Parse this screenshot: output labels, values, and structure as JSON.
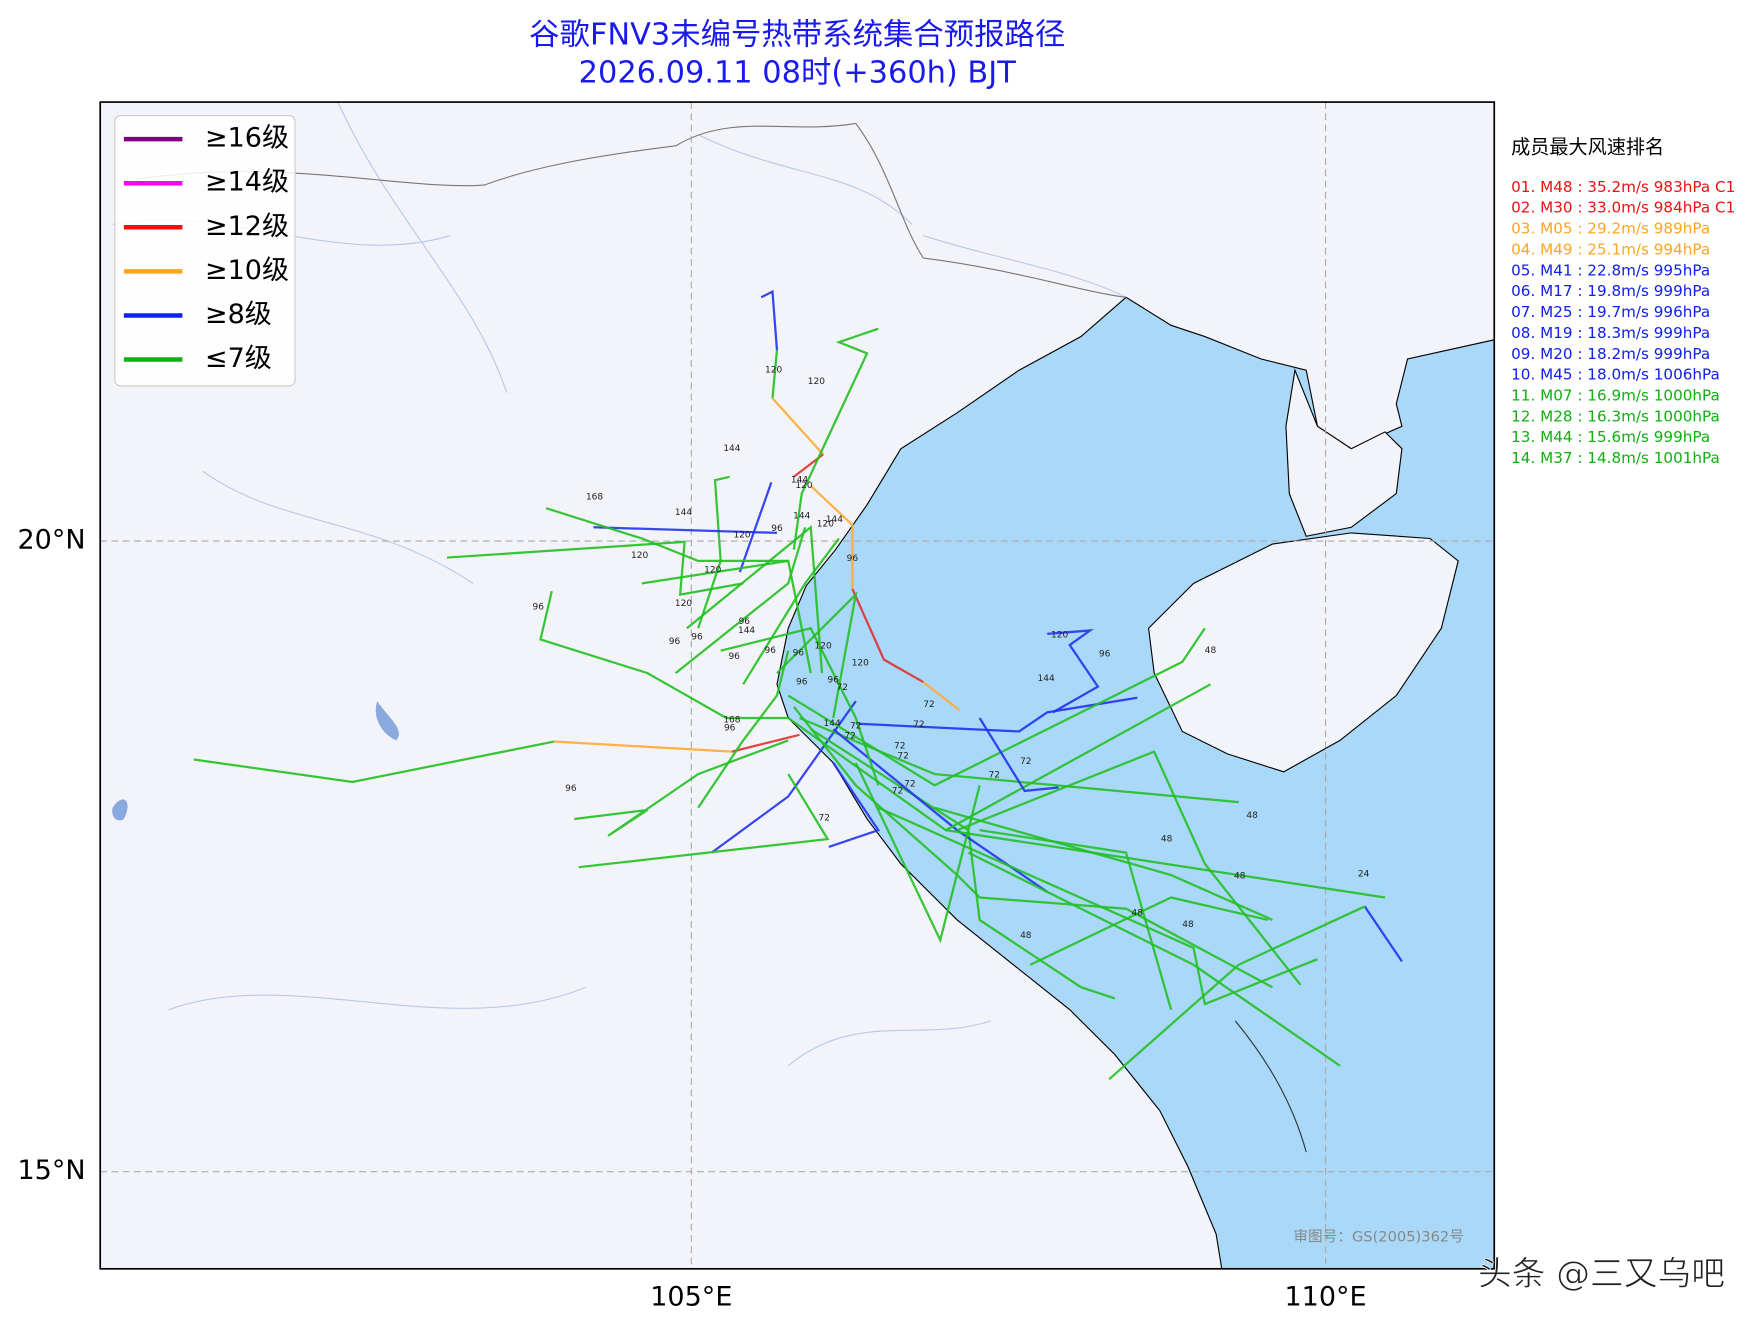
{
  "map": {
    "title": "谷歌FNV3未编号热带系统集合预报路径",
    "subtitle": "2026.09.11 08时(+360h) BJT",
    "xlim": [
      100.34,
      111.33
    ],
    "ylim": [
      14.23,
      23.48
    ],
    "xticks": [
      {
        "value": 105,
        "label": "105°E"
      },
      {
        "value": 110,
        "label": "110°E"
      }
    ],
    "yticks": [
      {
        "value": 20,
        "label": "20°N"
      },
      {
        "value": 15,
        "label": "15°N"
      }
    ],
    "grid": true,
    "legend": [
      {
        "label": "≥16级",
        "color": "#800080"
      },
      {
        "label": "≥14级",
        "color": "#ff00ff"
      },
      {
        "label": "≥12级",
        "color": "#ee1111"
      },
      {
        "label": "≥10级",
        "color": "#ffa520"
      },
      {
        "label": "≥8级",
        "color": "#1020ee"
      },
      {
        "label": "≤7级",
        "color": "#10b010"
      }
    ],
    "ranking": {
      "title": "成员最大风速排名",
      "items": [
        {
          "text": "01. M48 : 35.2m/s 983hPa C1",
          "color": "#ee1111"
        },
        {
          "text": "02. M30 : 33.0m/s 984hPa C1",
          "color": "#ee1111"
        },
        {
          "text": "03. M05 : 29.2m/s 989hPa",
          "color": "#ffa520"
        },
        {
          "text": "04. M49 : 25.1m/s 994hPa",
          "color": "#ffa520"
        },
        {
          "text": "05. M41 : 22.8m/s 995hPa",
          "color": "#1020ee"
        },
        {
          "text": "06. M17 : 19.8m/s 999hPa",
          "color": "#1020ee"
        },
        {
          "text": "07. M25 : 19.7m/s 996hPa",
          "color": "#1020ee"
        },
        {
          "text": "08. M19 : 18.3m/s 999hPa",
          "color": "#1020ee"
        },
        {
          "text": "09. M20 : 18.2m/s 999hPa",
          "color": "#1020ee"
        },
        {
          "text": "10. M45 : 18.0m/s 1006hPa",
          "color": "#1020ee"
        },
        {
          "text": "11. M07 : 16.9m/s 1000hPa",
          "color": "#10b010"
        },
        {
          "text": "12. M28 : 16.3m/s 1000hPa",
          "color": "#10b010"
        },
        {
          "text": "13. M44 : 15.6m/s 999hPa",
          "color": "#10b010"
        },
        {
          "text": "14. M37 : 14.8m/s 1001hPa",
          "color": "#10b010"
        }
      ]
    },
    "track_labels": [
      "120",
      "120",
      "144",
      "144",
      "120",
      "168",
      "144",
      "144",
      "144",
      "120",
      "96",
      "120",
      "120",
      "96",
      "120",
      "96",
      "120",
      "96",
      "144",
      "96",
      "96",
      "120",
      "120",
      "96",
      "96",
      "96",
      "48",
      "96",
      "120",
      "144",
      "96",
      "96",
      "72",
      "72",
      "168",
      "96",
      "144",
      "72",
      "72",
      "72",
      "72",
      "72",
      "72",
      "72",
      "72",
      "72",
      "96",
      "48",
      "72",
      "48",
      "48",
      "24",
      "48",
      "48",
      "48"
    ],
    "map_credit": "审图号：GS(2005)362号",
    "watermark": "头条 @三又乌吧"
  }
}
